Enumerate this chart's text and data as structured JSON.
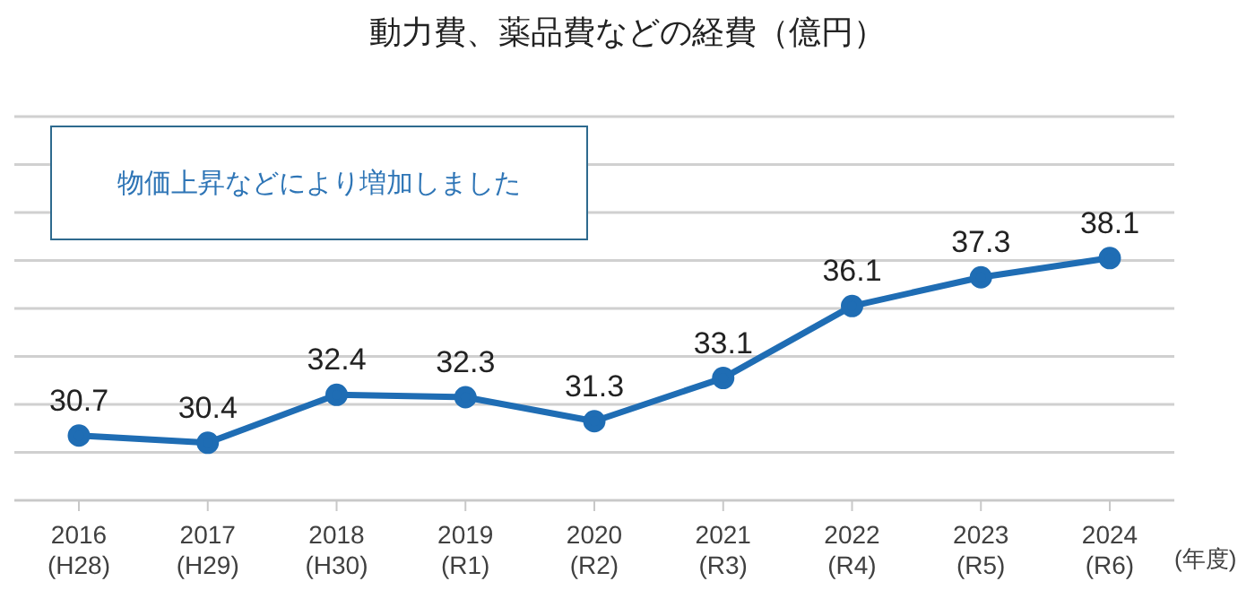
{
  "chart_data": {
    "type": "line",
    "title": "動力費、薬品費などの経費（億円）",
    "categories": [
      "2016\n(H28)",
      "2017\n(H29)",
      "2018\n(H30)",
      "2019\n(R1)",
      "2020\n(R2)",
      "2021\n(R3)",
      "2022\n(R4)",
      "2023\n(R5)",
      "2024\n(R6)"
    ],
    "series": [
      {
        "color": "#1f6db4",
        "values": [
          30.7,
          30.4,
          32.4,
          32.3,
          31.3,
          33.1,
          36.1,
          37.3,
          38.1
        ]
      }
    ],
    "xlabel": "(年度)",
    "annotations": [
      "物価上昇などにより増加しました"
    ],
    "ylim": [
      28,
      44
    ],
    "tick_labels": "x",
    "grid": "y",
    "legend": false,
    "marker": "circle",
    "line_style": "solid",
    "data_labels": true
  }
}
